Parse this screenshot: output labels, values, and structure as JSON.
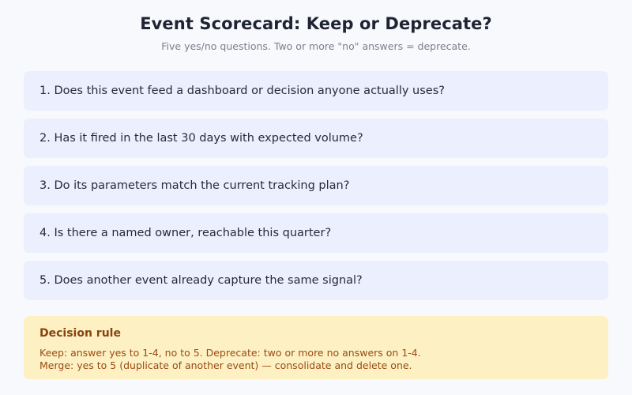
{
  "header": {
    "title": "Event Scorecard: Keep or Deprecate?",
    "subtitle": "Five yes/no questions. Two or more \"no\" answers = deprecate."
  },
  "questions": [
    "1. Does this event feed a dashboard or decision anyone actually uses?",
    "2. Has it fired in the last 30 days with expected volume?",
    "3. Do its parameters match the current tracking plan?",
    "4. Is there a named owner, reachable this quarter?",
    "5. Does another event already capture the same signal?"
  ],
  "decision_rule": {
    "title": "Decision rule",
    "line1": "Keep: answer yes to 1-4, no to 5. Deprecate: two or more no answers on 1-4.",
    "line2": "Merge: yes to 5 (duplicate of another event) — consolidate and delete one."
  },
  "colors": {
    "question_bg": "#eceffd",
    "rule_bg": "#fdf1c4",
    "rule_text": "#9a4b12"
  }
}
